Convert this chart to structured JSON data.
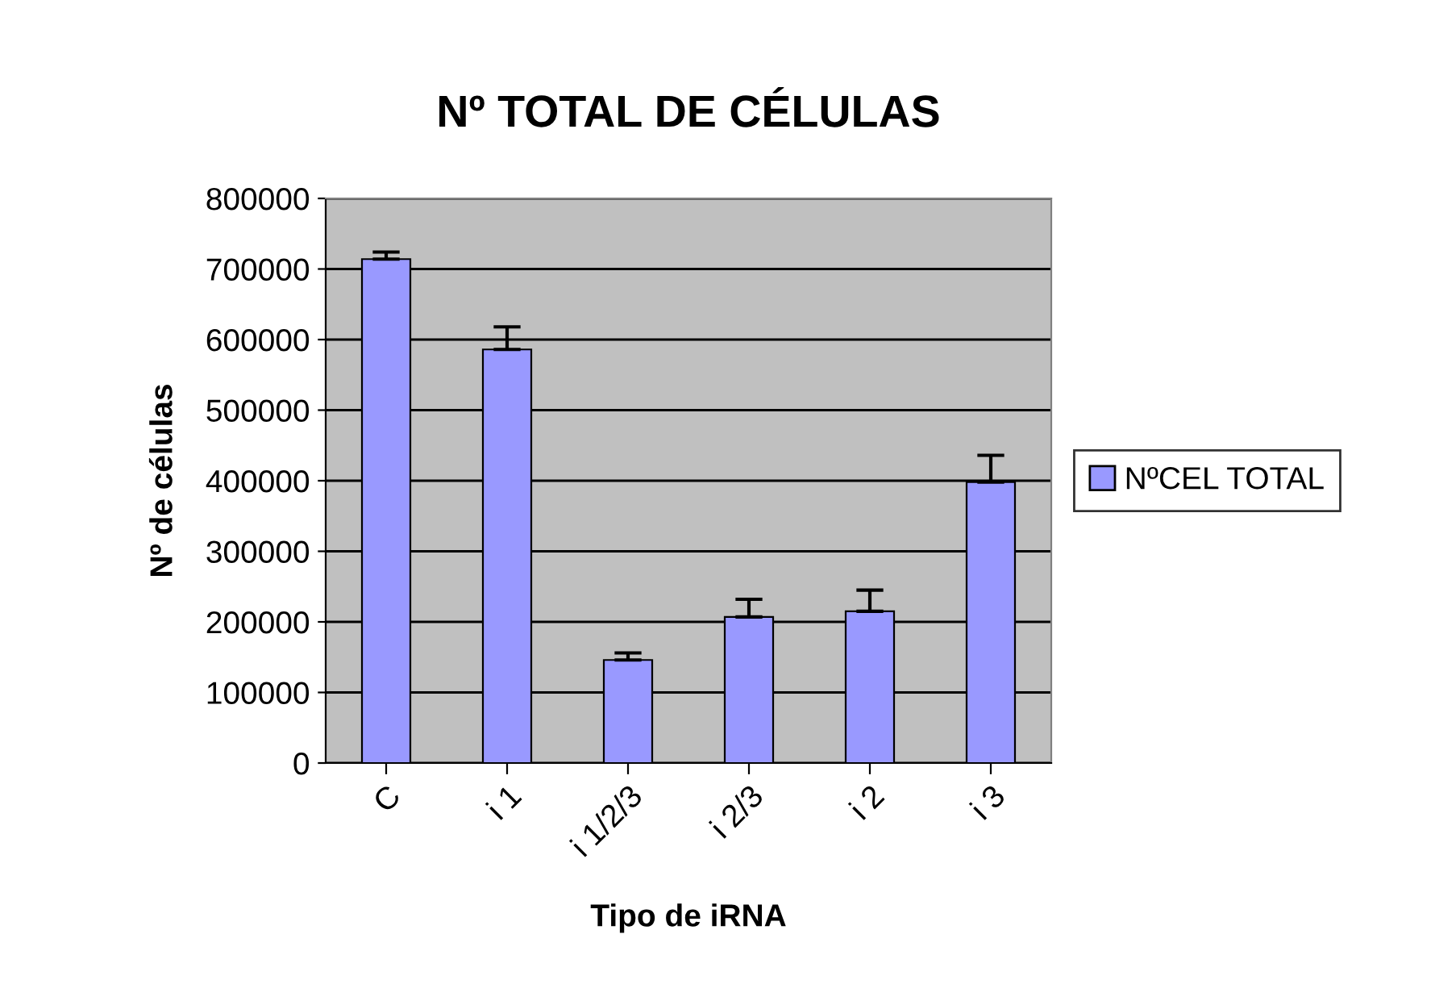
{
  "chart_data": {
    "type": "bar",
    "title": "Nº TOTAL DE CÉLULAS",
    "xlabel": "Tipo de iRNA",
    "ylabel": "Nº de células",
    "categories": [
      "C",
      "i 1",
      "i 1/2/3",
      "i 2/3",
      "i 2",
      "i 3"
    ],
    "series": [
      {
        "name": "NºCEL TOTAL",
        "color": "#9999ff",
        "values": [
          714000,
          586000,
          146000,
          207000,
          215000,
          398000
        ],
        "errors": [
          10000,
          32000,
          10000,
          25000,
          30000,
          38000
        ]
      }
    ],
    "ylim": [
      0,
      800000
    ],
    "yticks": [
      {
        "value": 0,
        "label": "0"
      },
      {
        "value": 100000,
        "label": "100000"
      },
      {
        "value": 200000,
        "label": "200000"
      },
      {
        "value": 300000,
        "label": "300000"
      },
      {
        "value": 400000,
        "label": "400000"
      },
      {
        "value": 500000,
        "label": "500000"
      },
      {
        "value": 600000,
        "label": "600000"
      },
      {
        "value": 700000,
        "label": "700000"
      },
      {
        "value": 800000,
        "label": "800000"
      }
    ],
    "grid": "y",
    "legend": "right"
  }
}
